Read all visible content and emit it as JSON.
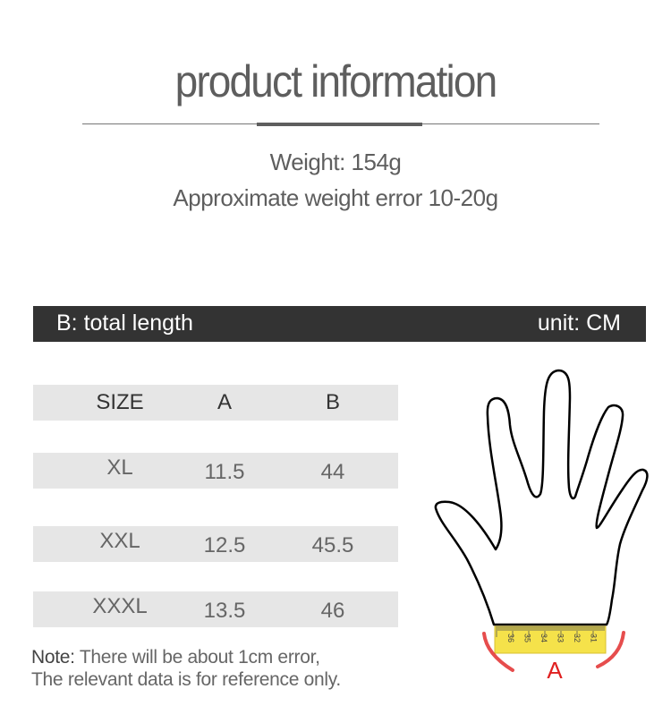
{
  "title": "product information",
  "weight": "Weight: 154g",
  "weight_error": "Approximate weight error 10-20g",
  "bar": {
    "left": "B: total length",
    "right": "unit: CM"
  },
  "table": {
    "headers": [
      "SIZE",
      "A",
      "B"
    ],
    "rows": [
      [
        "XL",
        "11.5",
        "44"
      ],
      [
        "XXL",
        "12.5",
        "45.5"
      ],
      [
        "XXXL",
        "13.5",
        "46"
      ]
    ]
  },
  "note": {
    "label": "Note:",
    "line1": " There will be about 1cm error,",
    "line2": "The relevant data is for reference only."
  },
  "diagram": {
    "label": "A",
    "tape_numbers": [
      "36",
      "35",
      "34",
      "33",
      "32",
      "31"
    ],
    "accent": "#e02020",
    "tape_color": "#f5e24a"
  }
}
